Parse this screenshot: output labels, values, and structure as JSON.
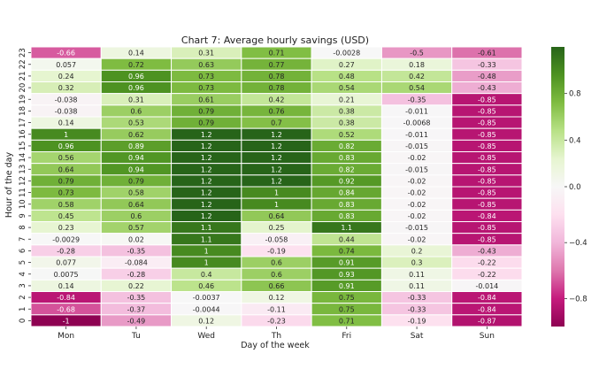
{
  "chart_data": {
    "type": "heatmap",
    "title": "Chart 7: Average hourly savings (USD)",
    "xlabel": "Day of the week",
    "ylabel": "Hour of the day",
    "x_categories": [
      "Mon",
      "Tu",
      "Wed",
      "Th",
      "Fri",
      "Sat",
      "Sun"
    ],
    "y_categories": [
      "23",
      "22",
      "21",
      "20",
      "19",
      "18",
      "17",
      "16",
      "15",
      "14",
      "13",
      "12",
      "11",
      "10",
      "9",
      "8",
      "7",
      "6",
      "5",
      "4",
      "3",
      "2",
      "1",
      "0"
    ],
    "values": [
      [
        -0.66,
        0.14,
        0.31,
        0.71,
        -0.0028,
        -0.5,
        -0.61
      ],
      [
        0.057,
        0.72,
        0.63,
        0.77,
        0.27,
        0.18,
        -0.33
      ],
      [
        0.24,
        0.96,
        0.73,
        0.78,
        0.48,
        0.42,
        -0.48
      ],
      [
        0.32,
        0.96,
        0.73,
        0.78,
        0.54,
        0.54,
        -0.43
      ],
      [
        -0.038,
        0.31,
        0.61,
        0.42,
        0.21,
        -0.35,
        -0.85
      ],
      [
        -0.038,
        0.6,
        0.79,
        0.76,
        0.38,
        -0.011,
        -0.85
      ],
      [
        0.14,
        0.53,
        0.79,
        0.7,
        0.38,
        -0.0068,
        -0.85
      ],
      [
        1,
        0.62,
        1.2,
        1.2,
        0.52,
        -0.011,
        -0.85
      ],
      [
        0.96,
        0.89,
        1.2,
        1.2,
        0.82,
        -0.015,
        -0.85
      ],
      [
        0.56,
        0.94,
        1.2,
        1.2,
        0.83,
        -0.02,
        -0.85
      ],
      [
        0.64,
        0.94,
        1.2,
        1.2,
        0.82,
        -0.015,
        -0.85
      ],
      [
        0.79,
        0.79,
        1.2,
        1.2,
        0.92,
        -0.02,
        -0.85
      ],
      [
        0.73,
        0.58,
        1.2,
        1,
        0.84,
        -0.02,
        -0.85
      ],
      [
        0.58,
        0.64,
        1.2,
        1,
        0.83,
        -0.02,
        -0.85
      ],
      [
        0.45,
        0.6,
        1.2,
        0.64,
        0.83,
        -0.02,
        -0.84
      ],
      [
        0.23,
        0.57,
        1.1,
        0.25,
        1.1,
        -0.015,
        -0.85
      ],
      [
        -0.0029,
        0.02,
        1.1,
        -0.058,
        0.44,
        -0.02,
        -0.85
      ],
      [
        -0.28,
        -0.35,
        1,
        -0.19,
        0.74,
        0.2,
        -0.43
      ],
      [
        0.077,
        -0.084,
        1,
        0.6,
        0.91,
        0.3,
        -0.22
      ],
      [
        0.0075,
        -0.28,
        0.4,
        0.6,
        0.93,
        0.11,
        -0.22
      ],
      [
        0.14,
        0.22,
        0.46,
        0.66,
        0.91,
        0.11,
        -0.014
      ],
      [
        -0.84,
        -0.35,
        -0.0037,
        0.12,
        0.75,
        -0.33,
        -0.84
      ],
      [
        -0.68,
        -0.37,
        -0.0044,
        -0.11,
        0.75,
        -0.33,
        -0.84
      ],
      [
        -1,
        -0.49,
        0.12,
        -0.23,
        0.71,
        -0.19,
        -0.87
      ]
    ],
    "value_labels": [
      [
        "-0.66",
        "0.14",
        "0.31",
        "0.71",
        "-0.0028",
        "-0.5",
        "-0.61"
      ],
      [
        "0.057",
        "0.72",
        "0.63",
        "0.77",
        "0.27",
        "0.18",
        "-0.33"
      ],
      [
        "0.24",
        "0.96",
        "0.73",
        "0.78",
        "0.48",
        "0.42",
        "-0.48"
      ],
      [
        "0.32",
        "0.96",
        "0.73",
        "0.78",
        "0.54",
        "0.54",
        "-0.43"
      ],
      [
        "-0.038",
        "0.31",
        "0.61",
        "0.42",
        "0.21",
        "-0.35",
        "-0.85"
      ],
      [
        "-0.038",
        "0.6",
        "0.79",
        "0.76",
        "0.38",
        "-0.011",
        "-0.85"
      ],
      [
        "0.14",
        "0.53",
        "0.79",
        "0.7",
        "0.38",
        "-0.0068",
        "-0.85"
      ],
      [
        "1",
        "0.62",
        "1.2",
        "1.2",
        "0.52",
        "-0.011",
        "-0.85"
      ],
      [
        "0.96",
        "0.89",
        "1.2",
        "1.2",
        "0.82",
        "-0.015",
        "-0.85"
      ],
      [
        "0.56",
        "0.94",
        "1.2",
        "1.2",
        "0.83",
        "-0.02",
        "-0.85"
      ],
      [
        "0.64",
        "0.94",
        "1.2",
        "1.2",
        "0.82",
        "-0.015",
        "-0.85"
      ],
      [
        "0.79",
        "0.79",
        "1.2",
        "1.2",
        "0.92",
        "-0.02",
        "-0.85"
      ],
      [
        "0.73",
        "0.58",
        "1.2",
        "1",
        "0.84",
        "-0.02",
        "-0.85"
      ],
      [
        "0.58",
        "0.64",
        "1.2",
        "1",
        "0.83",
        "-0.02",
        "-0.85"
      ],
      [
        "0.45",
        "0.6",
        "1.2",
        "0.64",
        "0.83",
        "-0.02",
        "-0.84"
      ],
      [
        "0.23",
        "0.57",
        "1.1",
        "0.25",
        "1.1",
        "-0.015",
        "-0.85"
      ],
      [
        "-0.0029",
        "0.02",
        "1.1",
        "-0.058",
        "0.44",
        "-0.02",
        "-0.85"
      ],
      [
        "-0.28",
        "-0.35",
        "1",
        "-0.19",
        "0.74",
        "0.2",
        "-0.43"
      ],
      [
        "0.077",
        "-0.084",
        "1",
        "0.6",
        "0.91",
        "0.3",
        "-0.22"
      ],
      [
        "0.0075",
        "-0.28",
        "0.4",
        "0.6",
        "0.93",
        "0.11",
        "-0.22"
      ],
      [
        "0.14",
        "0.22",
        "0.46",
        "0.66",
        "0.91",
        "0.11",
        "-0.014"
      ],
      [
        "-0.84",
        "-0.35",
        "-0.0037",
        "0.12",
        "0.75",
        "-0.33",
        "-0.84"
      ],
      [
        "-0.68",
        "-0.37",
        "-0.0044",
        "-0.11",
        "0.75",
        "-0.33",
        "-0.84"
      ],
      [
        "-1",
        "-0.49",
        "0.12",
        "-0.23",
        "0.71",
        "-0.19",
        "-0.87"
      ]
    ],
    "colormap": "PiYG",
    "vmin": -1,
    "vmax": 1.2,
    "center": 0,
    "colorbar": {
      "ticks": [
        0.8,
        0.4,
        0.0,
        -0.4,
        -0.8
      ],
      "tick_labels": [
        "0.8",
        "0.4",
        "0.0",
        "−0.4",
        "−0.8"
      ]
    },
    "grid": false,
    "cell_border_color": "#ffffff"
  }
}
